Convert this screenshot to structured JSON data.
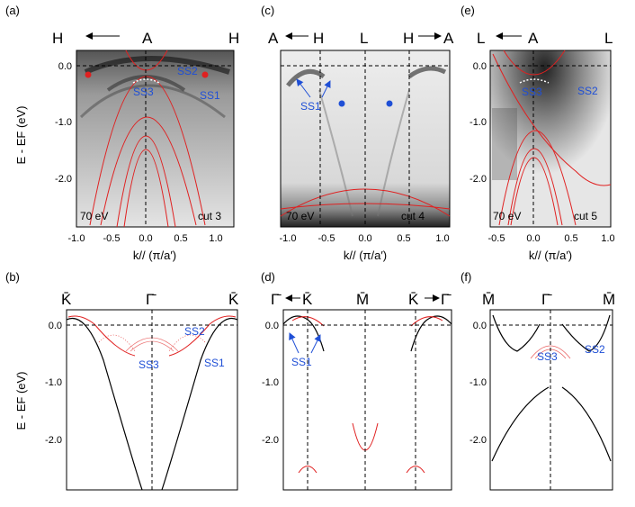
{
  "figure": {
    "panels": [
      {
        "id": "a",
        "label": "(a)",
        "hs_left": "H",
        "hs_center": "A",
        "hs_right": "H",
        "arrow_label": "",
        "photon": "70 eV",
        "cut": "cut 3",
        "xlabel": "k// (π/a′)",
        "xticks": [
          "-1.0",
          "-0.5",
          "0.0",
          "0.5",
          "1.0"
        ],
        "yticks": [
          "0.0",
          "-1.0",
          "-2.0"
        ],
        "ylabel": "E - EF (eV)",
        "annotations": [
          "SS1",
          "SS2",
          "SS3"
        ]
      },
      {
        "id": "c",
        "label": "(c)",
        "hs_labels": [
          "A",
          "H",
          "L",
          "H",
          "A"
        ],
        "photon": "70 eV",
        "cut": "cut 4",
        "xlabel": "k// (π/a′)",
        "xticks": [
          "-1.0",
          "-0.5",
          "0.0",
          "0.5",
          "1.0"
        ],
        "annotations": [
          "SS1"
        ]
      },
      {
        "id": "e",
        "label": "(e)",
        "hs_labels": [
          "L",
          "A",
          "L"
        ],
        "photon": "70 eV",
        "cut": "cut 5",
        "xlabel": "k// (π/a′)",
        "xticks": [
          "-0.5",
          "0.0",
          "0.5",
          "1.0"
        ],
        "yticks": [
          "0.0",
          "-1.0",
          "-2.0"
        ],
        "annotations": [
          "SS3",
          "SS2"
        ]
      },
      {
        "id": "b",
        "label": "(b)",
        "hs_labels": [
          "K̄",
          "Γ̄",
          "K̄"
        ],
        "ylabel": "E - EF (eV)",
        "yticks": [
          "0.0",
          "-1.0",
          "-2.0"
        ],
        "annotations": [
          "SS2",
          "SS3",
          "SS1"
        ]
      },
      {
        "id": "d",
        "label": "(d)",
        "hs_labels": [
          "Γ̄",
          "K̄",
          "M̄",
          "K̄",
          "Γ̄"
        ],
        "yticks": [
          "0.0",
          "-1.0",
          "-2.0"
        ],
        "annotations": [
          "SS1"
        ]
      },
      {
        "id": "f",
        "label": "(f)",
        "hs_labels": [
          "M̄",
          "Γ̄",
          "M̄"
        ],
        "yticks": [
          "0.0",
          "-1.0",
          "-2.0"
        ],
        "annotations": [
          "SS3",
          "SS2"
        ]
      }
    ]
  }
}
